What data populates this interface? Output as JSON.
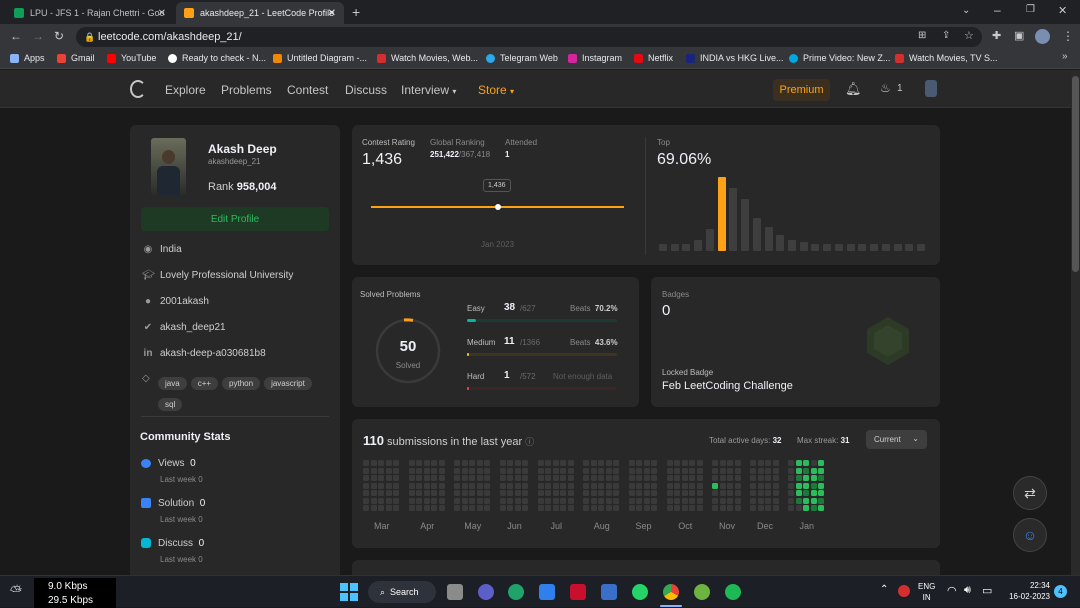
{
  "browser": {
    "tabs": [
      {
        "title": "LPU - JFS 1 - Rajan Chettri - Goo",
        "active": false
      },
      {
        "title": "akashdeep_21 - LeetCode Profile",
        "active": true
      }
    ],
    "url": "leetcode.com/akashdeep_21/",
    "bookmarks": [
      "Apps",
      "Gmail",
      "YouTube",
      "Ready to check - N...",
      "Untitled Diagram -...",
      "Watch Movies, Web...",
      "Telegram Web",
      "Instagram",
      "Netflix",
      "INDIA vs HKG Live...",
      "Prime Video: New Z...",
      "Watch Movies, TV S..."
    ]
  },
  "nav": {
    "links": [
      "Explore",
      "Problems",
      "Contest",
      "Discuss",
      "Interview",
      "Store"
    ],
    "premium": "Premium",
    "streak": "1"
  },
  "profile": {
    "name": "Akash Deep",
    "username": "akashdeep_21",
    "rank_label": "Rank",
    "rank": "958,004",
    "edit_button": "Edit Profile",
    "location": "India",
    "school": "Lovely Professional University",
    "github": "2001akash",
    "twitter": "akash_deep21",
    "linkedin": "akash-deep-a030681b8",
    "skills": [
      "java",
      "c++",
      "python",
      "javascript",
      "sql"
    ],
    "community_title": "Community Stats",
    "community": [
      {
        "label": "Views",
        "value": "0",
        "sub": "Last week 0"
      },
      {
        "label": "Solution",
        "value": "0",
        "sub": "Last week 0"
      },
      {
        "label": "Discuss",
        "value": "0",
        "sub": "Last week 0"
      }
    ]
  },
  "contest": {
    "rating_label": "Contest Rating",
    "rating": "1,436",
    "global_label": "Global Ranking",
    "global_rank": "251,422",
    "global_total": "/367,418",
    "attended_label": "Attended",
    "attended": "1",
    "tooltip": "1,436",
    "date_label": "Jan 2023",
    "top_label": "Top",
    "top_value": "69.06%",
    "histogram": [
      0.1,
      0.1,
      0.1,
      0.15,
      0.3,
      1.0,
      0.85,
      0.7,
      0.45,
      0.32,
      0.22,
      0.15,
      0.12,
      0.1,
      0.1,
      0.1,
      0.1,
      0.1,
      0.1,
      0.1,
      0.1,
      0.1,
      0.1
    ],
    "histogram_highlight": 5
  },
  "solved": {
    "title": "Solved Problems",
    "total": "50",
    "total_label": "Solved",
    "levels": [
      {
        "name": "Easy",
        "count": "38",
        "total": "/627",
        "beats_label": "Beats",
        "beats": "70.2%",
        "color": "#00b8a3",
        "fraction": 0.06
      },
      {
        "name": "Medium",
        "count": "11",
        "total": "/1366",
        "beats_label": "Beats",
        "beats": "43.6%",
        "color": "#ffc01e",
        "fraction": 0.01
      },
      {
        "name": "Hard",
        "count": "1",
        "total": "/572",
        "beats_label": "",
        "beats": "Not enough data",
        "color": "#ef4743",
        "fraction": 0.002
      }
    ]
  },
  "badges": {
    "title": "Badges",
    "count": "0",
    "locked_label": "Locked Badge",
    "locked_name": "Feb LeetCoding Challenge"
  },
  "submissions": {
    "count": "110",
    "label": "submissions in the last year",
    "active_days_label": "Total active days:",
    "active_days": "32",
    "streak_label": "Max streak:",
    "streak": "31",
    "dropdown": "Current",
    "months": [
      "Mar",
      "Apr",
      "May",
      "Jun",
      "Jul",
      "Aug",
      "Sep",
      "Oct",
      "Nov",
      "Dec",
      "Jan"
    ]
  },
  "taskbar": {
    "net_down": "9.0 Kbps",
    "net_up": "29.5 Kbps",
    "search": "Search",
    "lang": "ENG",
    "region": "IN",
    "time": "22:34",
    "date": "16-02-2023",
    "notifications": "4"
  },
  "colors": {
    "accent": "#ffa116",
    "easy": "#00b8a3",
    "medium": "#ffc01e",
    "hard": "#ef4743",
    "heat": "#2cbb5d"
  }
}
